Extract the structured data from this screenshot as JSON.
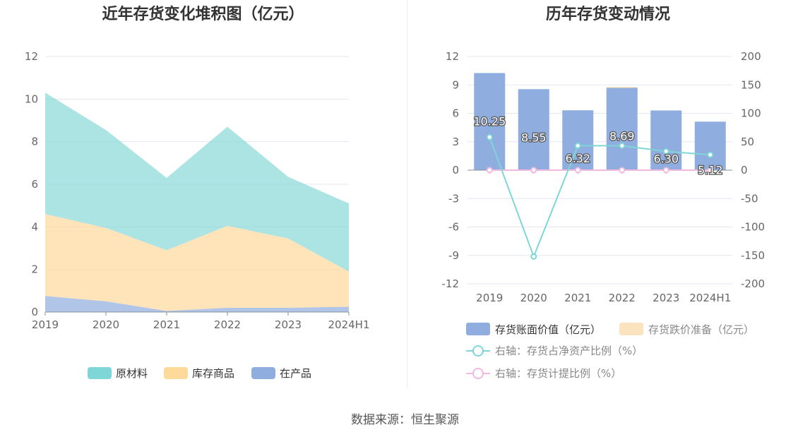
{
  "source_label": "数据来源：恒生聚源",
  "colors": {
    "raw_material": "#7fd6d6",
    "finished_goods": "#fdd99a",
    "wip": "#8fadde",
    "bar": "#8fadde",
    "bar_label_text": "#ffffff",
    "impairment": "#fbe3bf",
    "net_asset_ratio": "#7fd6d6",
    "provision_ratio": "#f2b8dd",
    "grid": "#e3e7f2",
    "axis_text": "#666666"
  },
  "chart_data": [
    {
      "type": "area",
      "stacked": true,
      "title": "近年存货变化堆积图（亿元）",
      "categories": [
        "2019",
        "2020",
        "2021",
        "2022",
        "2023",
        "2024H1"
      ],
      "ylim": [
        0,
        12
      ],
      "yticks": [
        0,
        2,
        4,
        6,
        8,
        10,
        12
      ],
      "grid": true,
      "legend_position": "bottom",
      "series": [
        {
          "name": "原材料",
          "values": [
            5.7,
            4.6,
            3.4,
            4.65,
            2.9,
            3.2
          ]
        },
        {
          "name": "库存商品",
          "values": [
            3.85,
            3.45,
            2.85,
            3.85,
            3.25,
            1.65
          ]
        },
        {
          "name": "在产品",
          "values": [
            0.75,
            0.5,
            0.05,
            0.2,
            0.2,
            0.25
          ]
        }
      ]
    },
    {
      "type": "bar",
      "title": "历年存货变动情况",
      "categories": [
        "2019",
        "2020",
        "2021",
        "2022",
        "2023",
        "2024H1"
      ],
      "ylim_left": [
        -12,
        12
      ],
      "yticks_left": [
        -12,
        -9,
        -6,
        -3,
        0,
        3,
        6,
        9,
        12
      ],
      "ylim_right": [
        -200,
        200
      ],
      "yticks_right": [
        -200,
        -150,
        -100,
        -50,
        0,
        50,
        100,
        150,
        200
      ],
      "grid": true,
      "legend_position": "bottom",
      "series": [
        {
          "name": "存货账面价值（亿元）",
          "type": "bar",
          "axis": "left",
          "values": [
            10.25,
            8.55,
            6.32,
            8.69,
            6.3,
            5.12
          ],
          "labels": [
            "10.25",
            "8.55",
            "6.32",
            "8.69",
            "6.30",
            "5.12"
          ]
        },
        {
          "name": "存货跌价准备（亿元）",
          "type": "bar",
          "axis": "left",
          "values": [
            0,
            0,
            0,
            0.06,
            0,
            0
          ]
        },
        {
          "name": "右轴：存货占净资产比例（%）",
          "type": "line",
          "axis": "right",
          "values": [
            58,
            -152,
            43,
            43,
            33,
            27
          ]
        },
        {
          "name": "右轴：存货计提比例（%）",
          "type": "line",
          "axis": "right",
          "values": [
            0,
            0,
            0,
            0,
            0,
            0
          ]
        }
      ]
    }
  ]
}
